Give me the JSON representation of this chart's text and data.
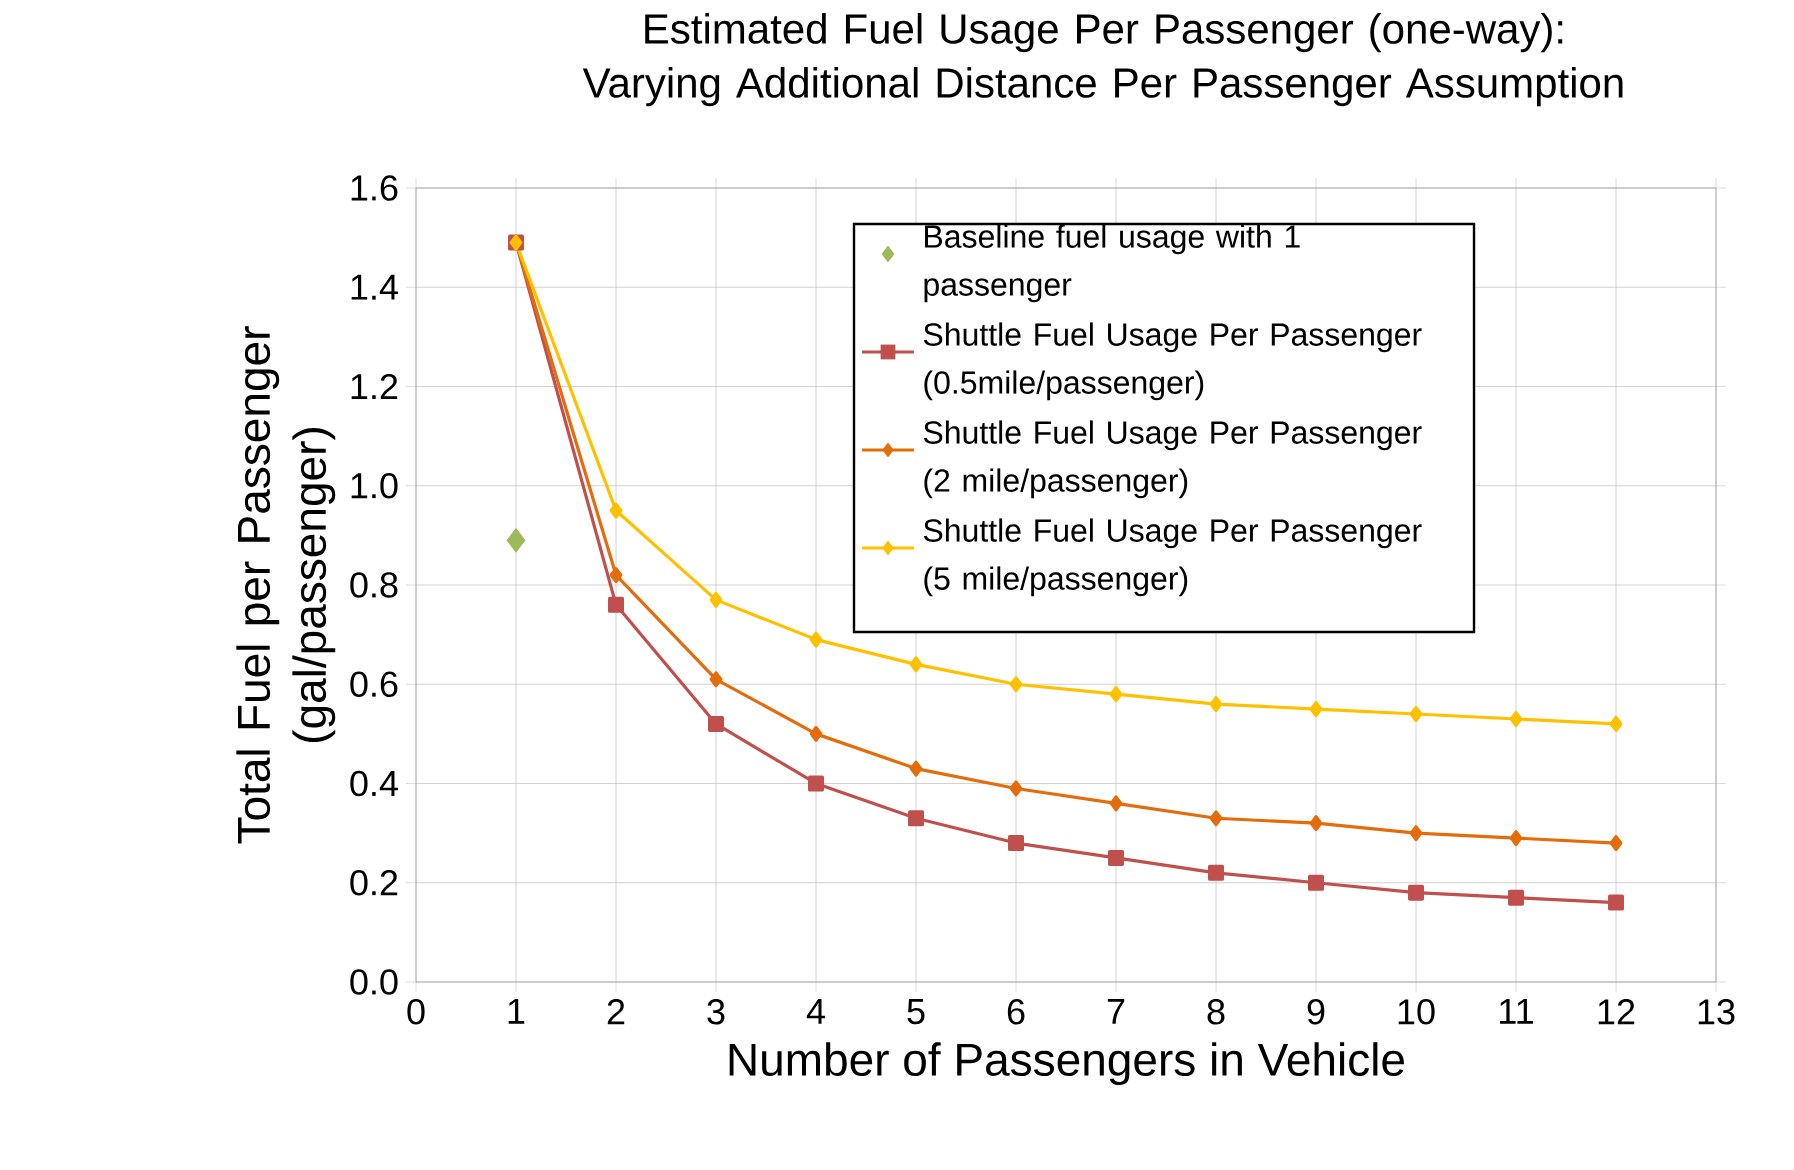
{
  "chart_data": {
    "type": "line",
    "title": "Estimated  Fuel Usage Per Passenger (one-way): Varying Additional Distance Per Passenger Assumption",
    "xlabel": "Number of Passengers in Vehicle",
    "ylabel": "Total Fuel per Passenger (gal/passenger)",
    "xlim": [
      0,
      13
    ],
    "xticks": [
      0,
      1,
      2,
      3,
      4,
      5,
      6,
      7,
      8,
      9,
      10,
      11,
      12,
      13
    ],
    "ylim": [
      0,
      1.6
    ],
    "yticks": [
      {
        "value": 0,
        "label": "0.0"
      },
      0.2,
      0.4,
      0.6,
      0.8,
      {
        "value": 1,
        "label": "1.0"
      },
      1.2,
      1.4,
      1.6
    ],
    "grid": true,
    "legend": "top right",
    "series": [
      {
        "name": "Baseline fuel usage with 1 passenger",
        "type": "scatter",
        "marker": "diamond",
        "color": "#9bbb59",
        "x": [
          1
        ],
        "values": [
          0.89
        ]
      },
      {
        "name": "Shuttle Fuel Usage Per Passenger (0.5mile/passenger)",
        "marker": "square",
        "color": "#c0504d",
        "x": [
          1,
          2,
          3,
          4,
          5,
          6,
          7,
          8,
          9,
          10,
          11,
          12
        ],
        "values": [
          1.49,
          0.76,
          0.52,
          0.4,
          0.33,
          0.28,
          0.25,
          0.22,
          0.2,
          0.18,
          0.17,
          0.16
        ]
      },
      {
        "name": "Shuttle Fuel Usage Per Passenger (2 mile/passenger)",
        "marker": "diamond",
        "color": "#e46c0a",
        "x": [
          1,
          2,
          3,
          4,
          5,
          6,
          7,
          8,
          9,
          10,
          11,
          12
        ],
        "values": [
          1.49,
          0.82,
          0.61,
          0.5,
          0.43,
          0.39,
          0.36,
          0.33,
          0.32,
          0.3,
          0.29,
          0.28
        ]
      },
      {
        "name": "Shuttle Fuel Usage Per Passenger (5 mile/passenger)",
        "marker": "diamond",
        "color": "#ffc000",
        "x": [
          1,
          2,
          3,
          4,
          5,
          6,
          7,
          8,
          9,
          10,
          11,
          12
        ],
        "values": [
          1.49,
          0.95,
          0.77,
          0.69,
          0.64,
          0.6,
          0.58,
          0.56,
          0.55,
          0.54,
          0.53,
          0.52
        ]
      }
    ]
  }
}
